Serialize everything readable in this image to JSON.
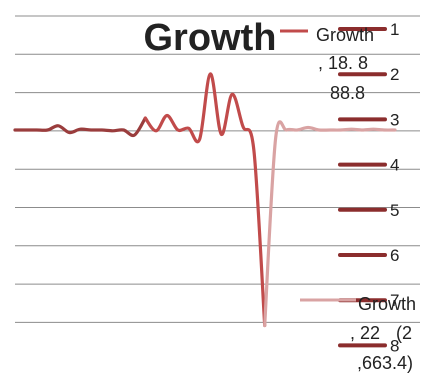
{
  "chart_data": {
    "type": "line",
    "title": "Growth",
    "xlabel": "",
    "ylabel": "",
    "grid": true,
    "gridline_count": 9,
    "smooth": true,
    "colors": {
      "early": "#9a3d3d",
      "spike": "#c14b4b",
      "late": "#d9a3a3",
      "legend_line": "#8b2d2d",
      "grid": "#8c8c8c"
    },
    "legend": {
      "placement": "right",
      "entries": [
        "1",
        "2",
        "3",
        "4",
        "5",
        "6",
        "7",
        "8"
      ]
    },
    "series": [
      {
        "values": [
          0,
          0,
          0,
          0,
          0.25,
          -0.15,
          0.05,
          0,
          0,
          -0.05,
          0,
          -0.3,
          0.7,
          -0.05,
          0.85,
          0,
          0.1,
          -0.55,
          3.3,
          -0.25,
          2.1,
          0.2,
          -1.2,
          -11.5,
          -0.5,
          0,
          0,
          0.15,
          0,
          0,
          0,
          0.05,
          0,
          0.05,
          0,
          0
        ]
      }
    ],
    "annotations": {
      "top_name": "Growth",
      "top_value_1": ", 18. 8",
      "top_value_2": "88.8",
      "bottom_name": "Growth",
      "bottom_value_1": ", 22",
      "bottom_value_2": "(2",
      "bottom_value_3": ",663.4)"
    }
  }
}
